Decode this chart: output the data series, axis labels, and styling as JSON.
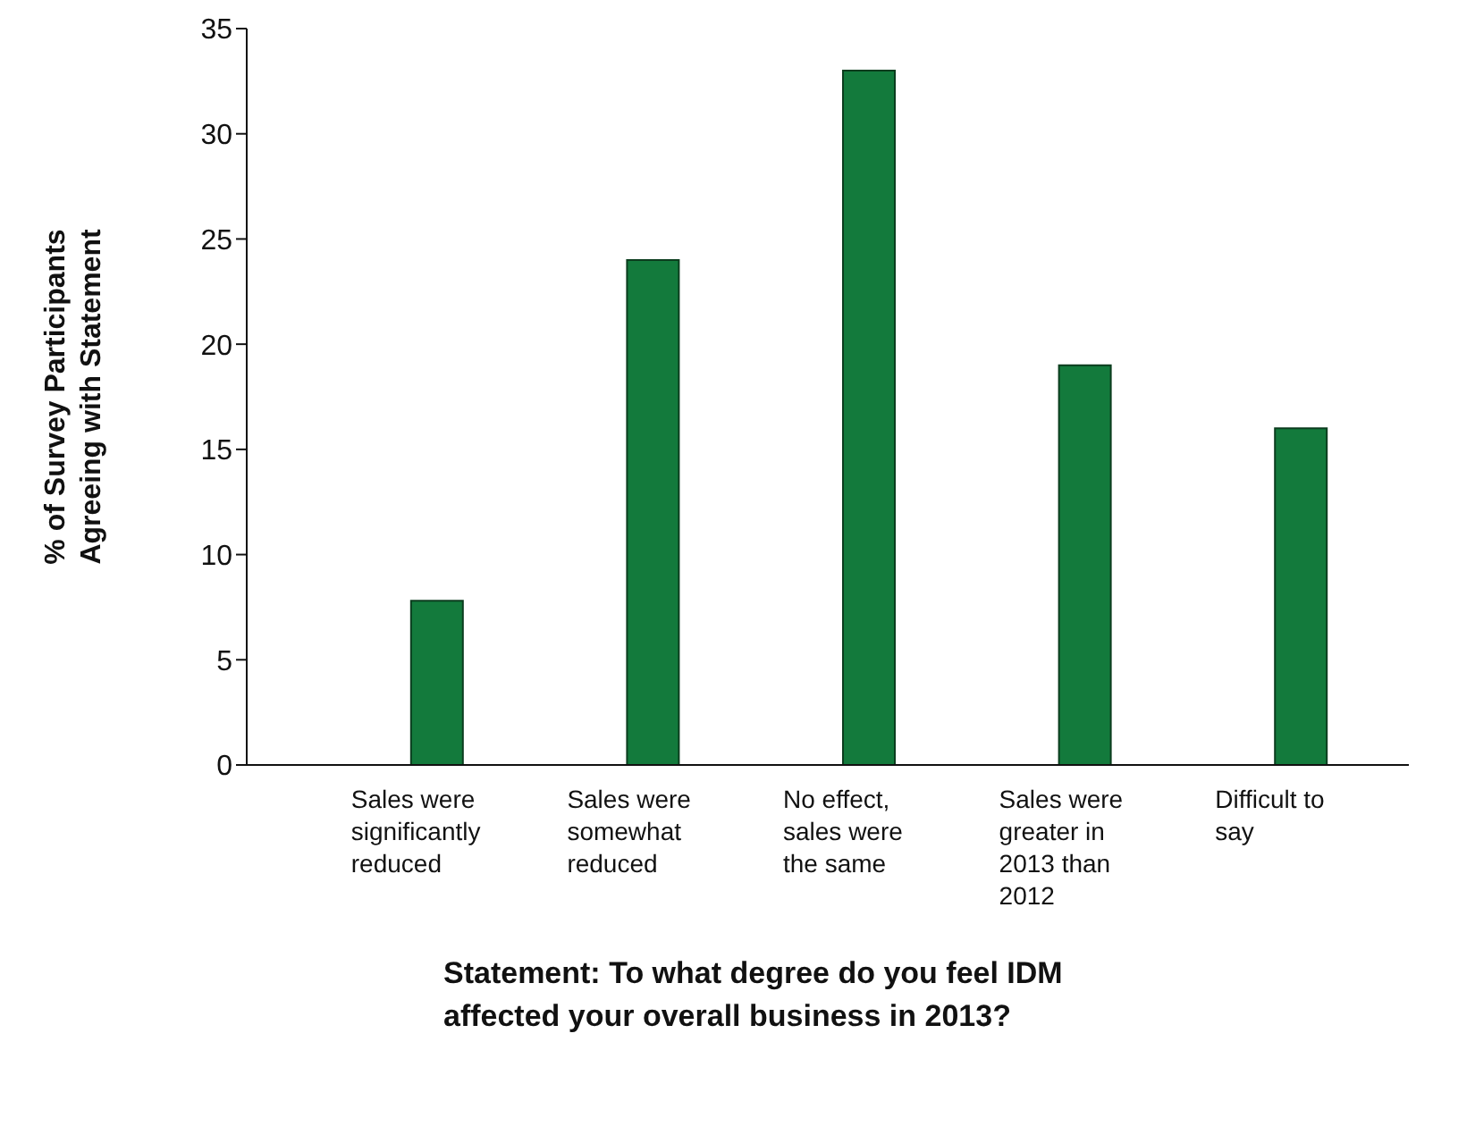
{
  "chart_data": {
    "type": "bar",
    "xlabel": "Statement: To what degree do you feel IDM affected your overall business in 2013?",
    "ylabel": "% of Survey Participants Agreeing with Statement",
    "categories": [
      "Sales were significantly reduced",
      "Sales were somewhat reduced",
      "No effect, sales were the same",
      "Sales were greater in 2013 than 2012",
      "Difficult to say"
    ],
    "values": [
      7.8,
      24,
      33,
      19,
      16
    ],
    "color": "#137a3c",
    "ylim": [
      0,
      35
    ],
    "yticks": [
      0,
      5,
      10,
      15,
      20,
      25,
      30,
      35
    ],
    "grid": false
  }
}
